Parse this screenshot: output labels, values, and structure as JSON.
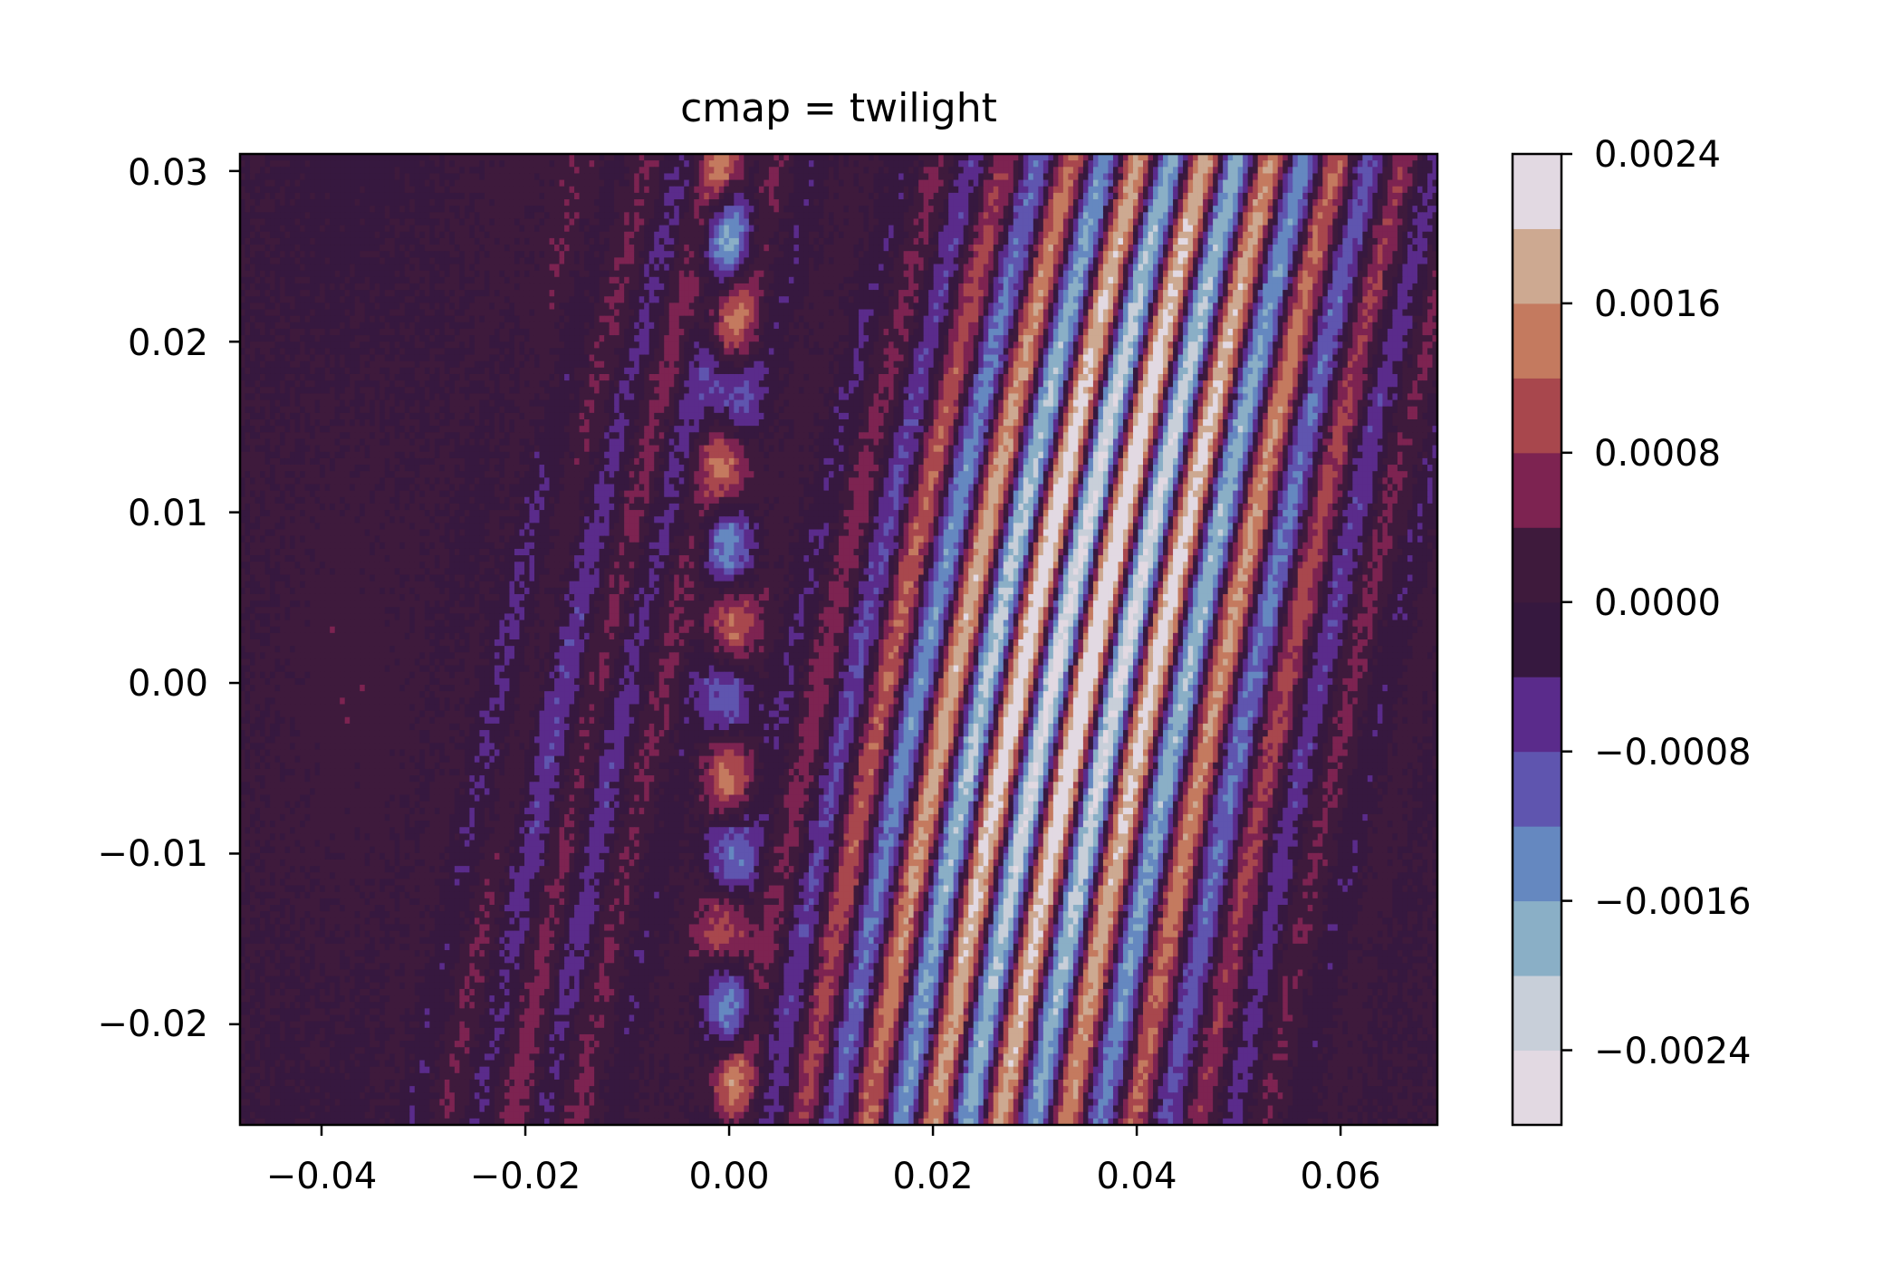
{
  "chart_data": {
    "type": "heatmap",
    "title": "cmap = twilight",
    "xlabel": "",
    "ylabel": "",
    "xlim": [
      -0.048,
      0.0695
    ],
    "ylim": [
      -0.0259,
      0.031
    ],
    "x_ticks": [
      -0.04,
      -0.02,
      0.0,
      0.02,
      0.04,
      0.06
    ],
    "x_tick_labels": [
      "−0.04",
      "−0.02",
      "0.00",
      "0.02",
      "0.04",
      "0.06"
    ],
    "y_ticks": [
      0.03,
      0.02,
      0.01,
      0.0,
      -0.01,
      -0.02
    ],
    "y_tick_labels": [
      "0.03",
      "0.02",
      "0.01",
      "0.00",
      "−0.01",
      "−0.02"
    ],
    "colormap": "twilight",
    "color_levels": [
      -0.0028,
      -0.0024,
      -0.002,
      -0.0016,
      -0.0012,
      -0.0008,
      -0.0004,
      0.0,
      0.0004,
      0.0008,
      0.0012,
      0.0016,
      0.002,
      0.0024
    ],
    "level_colors": [
      "#e2d9e2",
      "#c8cfd9",
      "#8aafc6",
      "#6588c0",
      "#5f55af",
      "#5a2b8b",
      "#36183f",
      "#3e1a3c",
      "#7d2351",
      "#a8474d",
      "#c47a5f",
      "#cda991",
      "#e2d9e2"
    ],
    "colorbar": {
      "ticks": [
        0.0024,
        0.0016,
        0.0008,
        0.0,
        -0.0008,
        -0.0016,
        -0.0024
      ],
      "tick_labels": [
        "0.0024",
        "0.0016",
        "0.0008",
        "0.0000",
        "−0.0008",
        "−0.0016",
        "−0.0024"
      ]
    },
    "field_description": "interference fringes: near-vertical bands with amplitude peaking near x=0.035, faint speckle elsewhere, spots near x=0"
  }
}
